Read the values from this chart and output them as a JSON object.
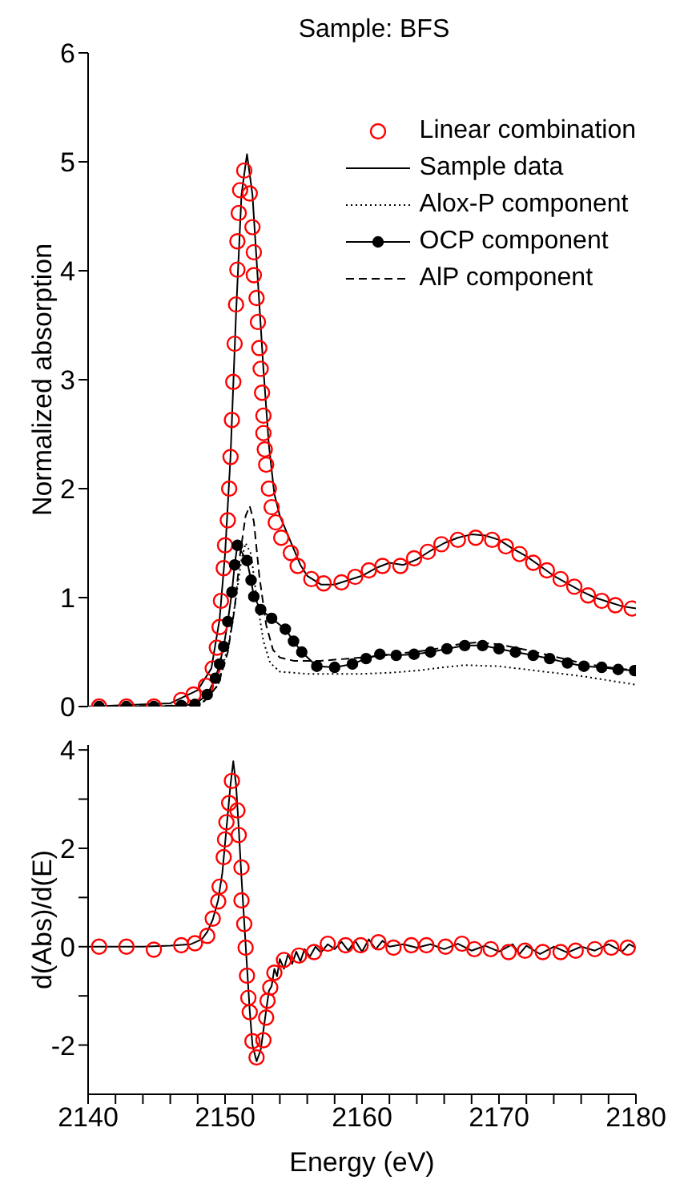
{
  "chart_data": [
    {
      "type": "line",
      "title": "Sample: BFS",
      "ylabel": "Normalized absorption",
      "xlim": [
        2140,
        2180
      ],
      "ylim": [
        0,
        6
      ],
      "yticks": [
        0,
        1,
        2,
        3,
        4,
        5,
        6
      ],
      "tick_labels": "y",
      "legend": "top right",
      "grid": false,
      "series": [
        {
          "name": "Linear combination",
          "type": "scatter",
          "marker": "circle",
          "color": "#ff0000",
          "x": [
            2140.8,
            2142.8,
            2144.8,
            2146.8,
            2147.7,
            2148.6,
            2149.1,
            2149.4,
            2149.6,
            2149.7,
            2149.9,
            2150.0,
            2150.2,
            2150.3,
            2150.4,
            2150.5,
            2150.6,
            2150.7,
            2150.8,
            2150.9,
            2150.9,
            2151.0,
            2151.1,
            2151.4,
            2151.8,
            2152.0,
            2152.1,
            2152.1,
            2152.3,
            2152.4,
            2152.5,
            2152.6,
            2152.7,
            2152.8,
            2152.8,
            2152.9,
            2153.0,
            2153.2,
            2153.4,
            2153.7,
            2154.1,
            2154.8,
            2155.3,
            2156.3,
            2157.2,
            2158.5,
            2159.5,
            2160.5,
            2161.5,
            2162.8,
            2163.8,
            2164.8,
            2165.8,
            2167.0,
            2168.3,
            2169.5,
            2170.5,
            2171.5,
            2172.5,
            2173.5,
            2174.5,
            2175.5,
            2176.5,
            2177.5,
            2178.5,
            2179.7
          ],
          "values": [
            0,
            0,
            0,
            0.06,
            0.11,
            0.19,
            0.35,
            0.54,
            0.73,
            0.97,
            1.27,
            1.48,
            1.71,
            2.0,
            2.29,
            2.63,
            2.98,
            3.33,
            3.69,
            4.01,
            4.27,
            4.53,
            4.74,
            4.92,
            4.71,
            4.4,
            4.17,
            3.96,
            3.75,
            3.53,
            3.29,
            3.1,
            2.88,
            2.67,
            2.51,
            2.36,
            2.22,
            2.0,
            1.83,
            1.69,
            1.55,
            1.41,
            1.29,
            1.17,
            1.13,
            1.14,
            1.19,
            1.25,
            1.29,
            1.29,
            1.36,
            1.42,
            1.49,
            1.53,
            1.55,
            1.53,
            1.47,
            1.4,
            1.32,
            1.25,
            1.17,
            1.1,
            1.02,
            0.97,
            0.93,
            0.9
          ]
        },
        {
          "name": "Sample data",
          "type": "line",
          "marker": "none",
          "line_style": "solid",
          "color": "#000000",
          "x": [
            2140,
            2146,
            2148,
            2149,
            2149.6,
            2150,
            2150.4,
            2150.8,
            2151.2,
            2151.6,
            2152,
            2152.4,
            2152.8,
            2153.2,
            2153.6,
            2154,
            2154.5,
            2155,
            2155.5,
            2156,
            2157,
            2158,
            2159,
            2160,
            2161,
            2162,
            2163,
            2164,
            2165,
            2166,
            2167,
            2168,
            2169,
            2170,
            2171,
            2172,
            2173,
            2174,
            2175,
            2176,
            2177,
            2178,
            2179,
            2180
          ],
          "values": [
            0,
            0.03,
            0.15,
            0.35,
            0.8,
            1.4,
            2.3,
            3.6,
            4.7,
            5.07,
            4.7,
            3.9,
            3.1,
            2.4,
            1.95,
            1.75,
            1.6,
            1.45,
            1.3,
            1.2,
            1.12,
            1.12,
            1.16,
            1.2,
            1.27,
            1.32,
            1.3,
            1.35,
            1.43,
            1.5,
            1.55,
            1.58,
            1.57,
            1.53,
            1.45,
            1.38,
            1.29,
            1.2,
            1.13,
            1.06,
            1.0,
            0.96,
            0.92,
            0.9
          ]
        },
        {
          "name": "Alox-P component",
          "type": "line",
          "marker": "none",
          "line_style": "dotted",
          "color": "#000000",
          "x": [
            2140,
            2147,
            2148.5,
            2149.5,
            2150.3,
            2150.8,
            2151.2,
            2151.5,
            2151.9,
            2152.3,
            2152.8,
            2153.3,
            2154,
            2156,
            2158,
            2160,
            2162,
            2164,
            2166,
            2167.5,
            2170,
            2172,
            2174,
            2176,
            2178,
            2180
          ],
          "values": [
            0,
            0,
            0.05,
            0.2,
            0.6,
            1.0,
            1.35,
            1.5,
            1.4,
            1.0,
            0.6,
            0.4,
            0.32,
            0.3,
            0.3,
            0.3,
            0.31,
            0.33,
            0.36,
            0.38,
            0.37,
            0.34,
            0.31,
            0.28,
            0.24,
            0.2
          ]
        },
        {
          "name": "OCP component",
          "type": "line",
          "marker": "circle",
          "line_style": "solid",
          "color": "#000000",
          "x": [
            2140.8,
            2142.8,
            2144.8,
            2146.8,
            2147.8,
            2148.7,
            2149.3,
            2149.6,
            2149.9,
            2150.2,
            2150.5,
            2150.7,
            2150.9,
            2151.6,
            2151.9,
            2152.1,
            2152.6,
            2153.4,
            2154.4,
            2155.0,
            2155.6,
            2156.7,
            2158.0,
            2159.3,
            2160.3,
            2161.3,
            2162.5,
            2163.8,
            2165.0,
            2166.2,
            2167.5,
            2168.8,
            2170.0,
            2171.2,
            2172.5,
            2173.7,
            2175.0,
            2176.2,
            2177.5,
            2178.7,
            2179.9
          ],
          "values": [
            0,
            0,
            0,
            0.01,
            0.02,
            0.11,
            0.26,
            0.39,
            0.55,
            0.78,
            1.05,
            1.3,
            1.48,
            1.34,
            1.16,
            1.01,
            0.89,
            0.81,
            0.71,
            0.6,
            0.5,
            0.37,
            0.36,
            0.39,
            0.44,
            0.48,
            0.47,
            0.48,
            0.5,
            0.53,
            0.56,
            0.56,
            0.53,
            0.5,
            0.47,
            0.44,
            0.4,
            0.37,
            0.36,
            0.34,
            0.33
          ]
        },
        {
          "name": "AlP component",
          "type": "line",
          "marker": "none",
          "line_style": "dashed",
          "color": "#000000",
          "x": [
            2140,
            2147,
            2148.5,
            2149.5,
            2150.2,
            2150.7,
            2151.1,
            2151.5,
            2151.8,
            2152.1,
            2152.5,
            2153,
            2153.5,
            2154,
            2155,
            2157,
            2159,
            2161,
            2163,
            2165,
            2167,
            2168.5,
            2170,
            2172,
            2174,
            2176,
            2178,
            2180
          ],
          "values": [
            0,
            0.01,
            0.05,
            0.2,
            0.5,
            0.9,
            1.4,
            1.75,
            1.84,
            1.7,
            1.2,
            0.75,
            0.52,
            0.45,
            0.42,
            0.42,
            0.44,
            0.46,
            0.49,
            0.52,
            0.57,
            0.59,
            0.57,
            0.52,
            0.46,
            0.4,
            0.36,
            0.33
          ]
        }
      ]
    },
    {
      "type": "line",
      "xlabel": "Energy (eV)",
      "ylabel": "d(Abs)/d(E)",
      "xlim": [
        2140,
        2180
      ],
      "xticks": [
        2140,
        {
          "value": 2142,
          "label": null
        },
        {
          "value": 2144,
          "label": null
        },
        {
          "value": 2146,
          "label": null
        },
        {
          "value": 2148,
          "label": null
        },
        2150,
        {
          "value": 2152,
          "label": null
        },
        {
          "value": 2154,
          "label": null
        },
        {
          "value": 2156,
          "label": null
        },
        {
          "value": 2158,
          "label": null
        },
        2160,
        {
          "value": 2162,
          "label": null
        },
        {
          "value": 2164,
          "label": null
        },
        {
          "value": 2166,
          "label": null
        },
        {
          "value": 2168,
          "label": null
        },
        2170,
        {
          "value": 2172,
          "label": null
        },
        {
          "value": 2174,
          "label": null
        },
        {
          "value": 2176,
          "label": null
        },
        {
          "value": 2178,
          "label": null
        },
        2180
      ],
      "ylim": [
        -3,
        4.1
      ],
      "yticks": [
        -2,
        {
          "value": -1,
          "label": null
        },
        0,
        {
          "value": 1,
          "label": null
        },
        2,
        {
          "value": 3,
          "label": null
        },
        4
      ],
      "grid": false,
      "series": [
        {
          "type": "scatter",
          "marker": "circle",
          "color": "#ff0000",
          "x": [
            2140.8,
            2142.8,
            2144.8,
            2146.8,
            2147.8,
            2148.7,
            2149.1,
            2149.5,
            2149.6,
            2149.9,
            2150.0,
            2150.1,
            2150.3,
            2150.5,
            2150.9,
            2151.0,
            2151.2,
            2151.2,
            2151.4,
            2151.5,
            2151.6,
            2151.7,
            2151.8,
            2152.0,
            2152.3,
            2152.8,
            2153.0,
            2153.1,
            2153.3,
            2153.6,
            2154.3,
            2155.4,
            2156.5,
            2157.5,
            2158.8,
            2159.9,
            2161.2,
            2162.3,
            2163.6,
            2164.7,
            2166.1,
            2167.3,
            2168.2,
            2169.4,
            2170.7,
            2171.9,
            2173.2,
            2174.5,
            2175.6,
            2177.0,
            2178.2,
            2179.4
          ],
          "values": [
            0,
            0,
            -0.06,
            0.03,
            0.07,
            0.22,
            0.57,
            0.92,
            1.22,
            1.82,
            2.18,
            2.53,
            2.92,
            3.37,
            2.77,
            2.27,
            1.61,
            0.94,
            0.46,
            -0.02,
            -0.59,
            -1.04,
            -1.33,
            -1.92,
            -2.25,
            -1.9,
            -1.44,
            -1.1,
            -0.83,
            -0.53,
            -0.27,
            -0.18,
            -0.11,
            0.06,
            0.03,
            0.03,
            0.09,
            -0.02,
            0.03,
            0.03,
            0,
            0.06,
            -0.05,
            -0.05,
            -0.11,
            -0.08,
            -0.11,
            -0.11,
            -0.08,
            -0.05,
            -0.02,
            -0.02
          ]
        },
        {
          "type": "line",
          "marker": "none",
          "line_style": "solid",
          "color": "#000000",
          "x": [
            2140,
            2142,
            2144,
            2146,
            2147.5,
            2148.3,
            2148.7,
            2149.1,
            2149.5,
            2149.8,
            2150.0,
            2150.2,
            2150.4,
            2150.6,
            2150.8,
            2151.0,
            2151.2,
            2151.4,
            2151.6,
            2151.8,
            2152.0,
            2152.3,
            2152.6,
            2152.8,
            2153.0,
            2153.2,
            2153.4,
            2153.6,
            2153.8,
            2154.0,
            2154.3,
            2154.6,
            2154.9,
            2155.2,
            2155.5,
            2155.8,
            2156.2,
            2156.6,
            2157,
            2157.5,
            2158,
            2158.5,
            2159,
            2159.5,
            2160,
            2160.5,
            2161,
            2161.5,
            2162,
            2163,
            2164,
            2165,
            2166,
            2167,
            2168,
            2169,
            2170,
            2171,
            2171.5,
            2172,
            2173,
            2174,
            2175,
            2176,
            2177,
            2178,
            2179,
            2179.5,
            2180
          ],
          "values": [
            0,
            0,
            0,
            0.02,
            0.05,
            0.15,
            0.3,
            0.55,
            0.95,
            1.5,
            2.1,
            2.7,
            3.3,
            3.77,
            3.3,
            2.4,
            1.4,
            0.5,
            -0.4,
            -1.3,
            -2.0,
            -2.33,
            -2.1,
            -1.7,
            -1.3,
            -0.9,
            -0.8,
            -0.45,
            -0.6,
            -0.25,
            -0.45,
            -0.15,
            -0.35,
            -0.1,
            -0.3,
            -0.05,
            -0.2,
            0,
            -0.12,
            0.05,
            -0.05,
            0.1,
            -0.08,
            0.12,
            -0.1,
            0.15,
            -0.05,
            0.12,
            0,
            0.05,
            -0.02,
            0.05,
            -0.05,
            0.06,
            -0.08,
            0.02,
            -0.1,
            0.05,
            -0.15,
            0.02,
            -0.15,
            0,
            -0.12,
            0,
            -0.08,
            0.05,
            -0.1,
            0.05,
            -0.02
          ]
        }
      ]
    }
  ]
}
